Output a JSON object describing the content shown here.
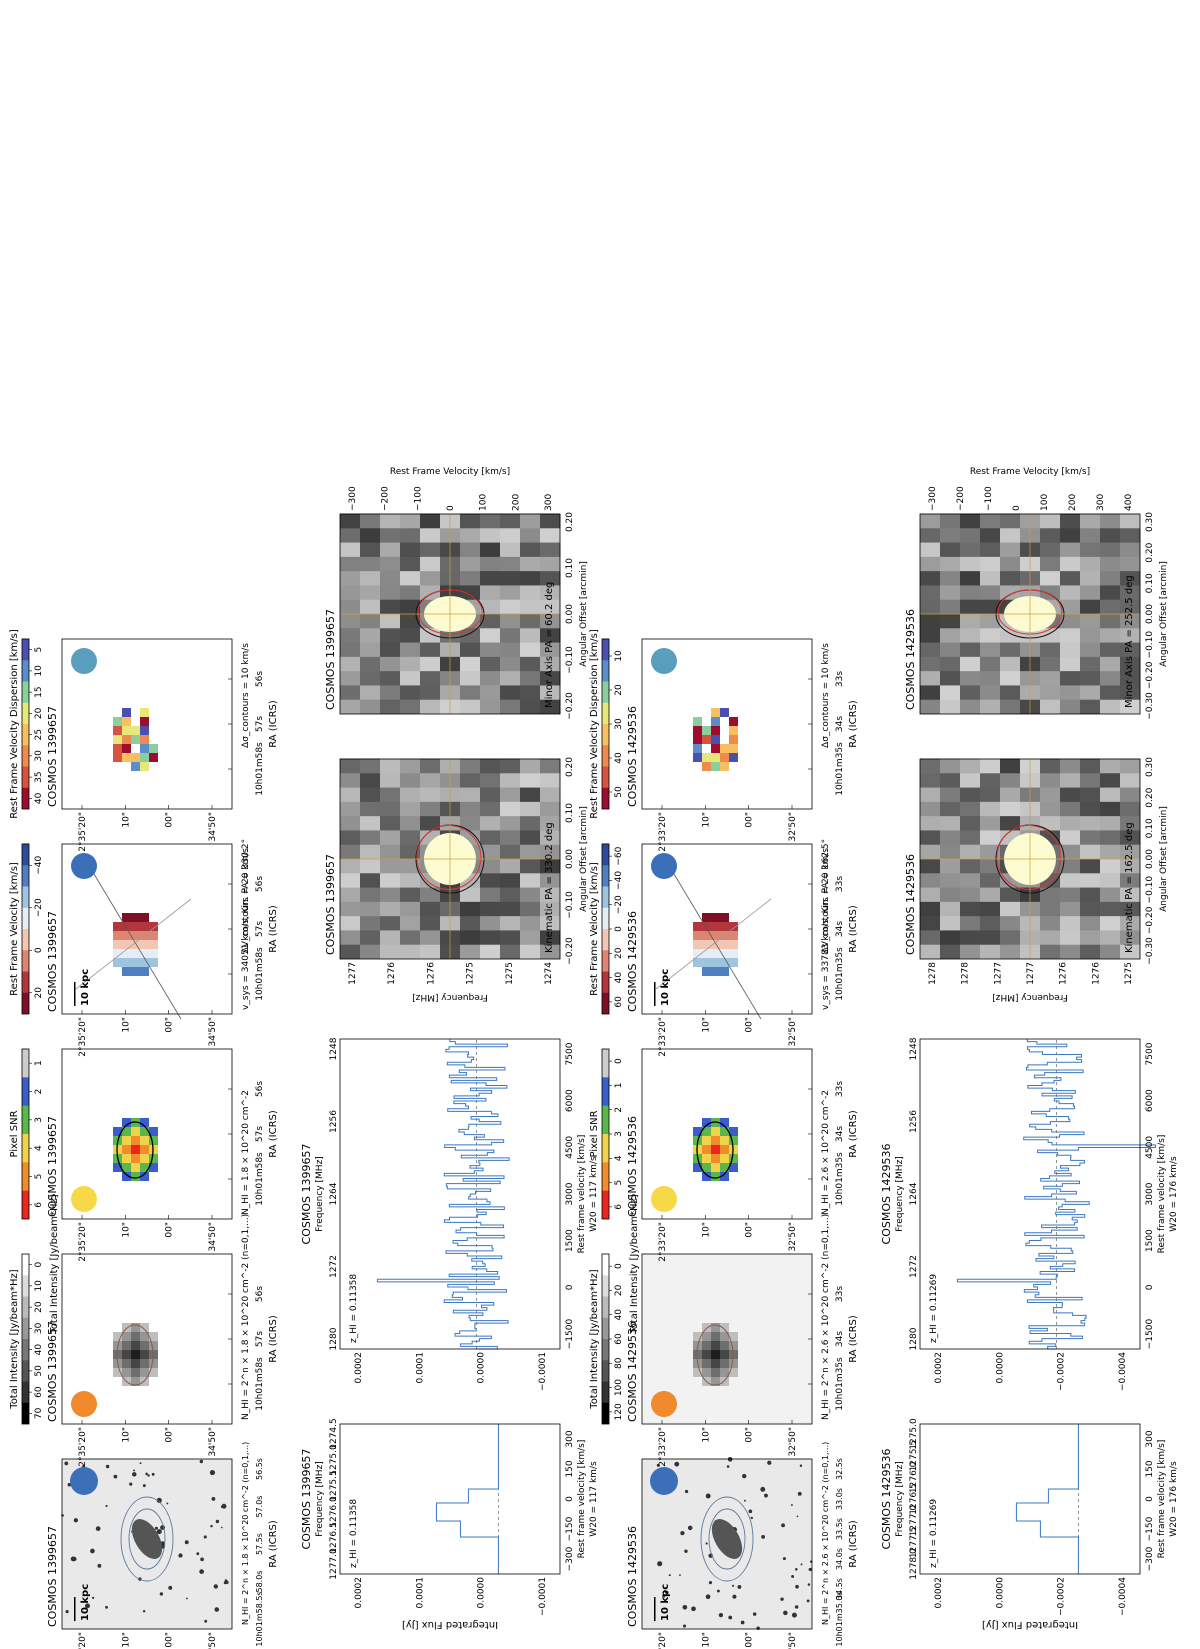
{
  "figure": {
    "dec_axis_label": "Dec (ICRS)",
    "ra_axis_label": "RA (ICRS)",
    "scalebar_label": "10 kpc",
    "colorbars": {
      "intensity": "Total Intensity [Jy/beam*Hz]",
      "snr": "Pixel SNR",
      "velocity": "Rest Frame Velocity [km/s]",
      "dispersion": "Rest Frame Velocity Dispersion [km/s]"
    },
    "flux_label": "Integrated Flux [Jy]",
    "restvel_label": "Rest frame velocity [km/s]",
    "freq_label": "Frequency [MHz]",
    "pv_ylabel": "Frequency [MHz]",
    "pv_xlabel": "Angular Offset [arcmin]",
    "pv_rlabel": "Rest Frame Velocity [km/s]"
  },
  "galaxies": [
    {
      "name": "COSMOS 1399657",
      "z_label": "z_HI = 0.11358",
      "nhi_contour": "N_HI = 2^n × 1.8 × 10^20 cm^-2 (n=0,1,...)",
      "nhi": "N_HI = 1.8 × 10^20 cm^-2",
      "vsys": "v_sys = 34051 km/s, Kin. PA = 330.2°",
      "dv_contours": "ΔV_contours = 20 km/s",
      "dsigma_contours": "Δσ_contours = 10 km/s",
      "w20": "W20 = 117 km/s",
      "kin_pa": "Kinematic PA = 330.2 deg",
      "minor_pa": "Minor Axis PA = 60.2 deg",
      "dec_ticks": [
        "2°35'20\"",
        "10\"",
        "00\"",
        "34'50\""
      ],
      "ra_ticks_optical": [
        "10h01m58.5s",
        "58.0s",
        "57.5s",
        "57.0s",
        "56.5s"
      ],
      "ra_ticks": [
        "10h01m58s",
        "57s",
        "56s"
      ],
      "intensity_ticks": [
        "70",
        "60",
        "50",
        "40",
        "30",
        "20",
        "10",
        "0"
      ],
      "snr_ticks": [
        "6",
        "5",
        "4",
        "3",
        "2",
        "1"
      ],
      "vel_ticks": [
        "20",
        "0",
        "−20",
        "−40"
      ],
      "disp_ticks": [
        "40",
        "35",
        "30",
        "25",
        "20",
        "15",
        "10",
        "5"
      ],
      "zoom_flux_ticks": [
        "0.0002",
        "0.0001",
        "0.0000",
        "−0.0001"
      ],
      "zoom_freq_ticks": [
        "1277.0",
        "1276.5",
        "1276.0",
        "1275.5",
        "1275.0",
        "1274.5"
      ],
      "zoom_vel_ticks": [
        "−300",
        "−150",
        "0",
        "150",
        "300"
      ],
      "full_flux_ticks": [
        "0.0002",
        "0.0001",
        "0.0000",
        "−0.0001"
      ],
      "full_freq_ticks": [
        "1280",
        "1272",
        "1264",
        "1256",
        "1248"
      ],
      "full_vel_ticks": [
        "−1500",
        "0",
        "1500",
        "3000",
        "4500",
        "6000",
        "7500"
      ],
      "pv_freq_ticks": [
        "1277",
        "1276",
        "1276",
        "1275",
        "1275",
        "1274"
      ],
      "pv_off_ticks": [
        "−0.20",
        "−0.10",
        "0.00",
        "0.10",
        "0.20"
      ],
      "pv_vel_ticks": [
        "−300",
        "−200",
        "−100",
        "0",
        "100",
        "200",
        "300"
      ]
    },
    {
      "name": "COSMOS 1429536",
      "z_label": "z_HI = 0.11269",
      "nhi_contour": "N_HI = 2^n × 2.6 × 10^20 cm^-2 (n=0,1,...)",
      "nhi": "N_HI = 2.6 × 10^20 cm^-2",
      "vsys": "v_sys = 33783 km/s, Kin. PA = 162.5°",
      "dv_contours": "ΔV_contours = 20 km/s",
      "dsigma_contours": "Δσ_contours = 10 km/s",
      "w20": "W20 = 176 km/s",
      "kin_pa": "Kinematic PA = 162.5 deg",
      "minor_pa": "Minor Axis PA = 252.5 deg",
      "dec_ticks": [
        "2°33'20\"",
        "10\"",
        "00\"",
        "32'50\""
      ],
      "ra_ticks_optical": [
        "10h01m35.0s",
        "34.5s",
        "34.0s",
        "33.5s",
        "33.0s",
        "32.5s"
      ],
      "ra_ticks": [
        "10h01m35s",
        "34s",
        "33s"
      ],
      "intensity_ticks": [
        "120",
        "100",
        "80",
        "60",
        "40",
        "20",
        "0"
      ],
      "snr_ticks": [
        "6",
        "5",
        "4",
        "3",
        "2",
        "1",
        "0"
      ],
      "vel_ticks": [
        "60",
        "40",
        "20",
        "0",
        "−20",
        "−40",
        "−60"
      ],
      "disp_ticks": [
        "50",
        "40",
        "30",
        "20",
        "10"
      ],
      "zoom_flux_ticks": [
        "0.0002",
        "0.0000",
        "−0.0002",
        "−0.0004"
      ],
      "zoom_freq_ticks": [
        "1278.0",
        "1277.5",
        "1277.0",
        "1276.5",
        "1276.0",
        "1275.5",
        "1275.0"
      ],
      "zoom_vel_ticks": [
        "−300",
        "−150",
        "0",
        "150",
        "300"
      ],
      "full_flux_ticks": [
        "0.0002",
        "0.0000",
        "−0.0002",
        "−0.0004"
      ],
      "full_freq_ticks": [
        "1280",
        "1272",
        "1264",
        "1256",
        "1248"
      ],
      "full_vel_ticks": [
        "−1500",
        "0",
        "1500",
        "3000",
        "4500",
        "6000",
        "7500"
      ],
      "pv_freq_ticks": [
        "1278",
        "1278",
        "1277",
        "1277",
        "1276",
        "1276",
        "1275"
      ],
      "pv_off_ticks": [
        "−0.30",
        "−0.20",
        "−0.10",
        "0.00",
        "0.10",
        "0.20",
        "0.30"
      ],
      "pv_vel_ticks": [
        "−300",
        "−200",
        "−100",
        "0",
        "100",
        "200",
        "300",
        "400"
      ]
    }
  ]
}
